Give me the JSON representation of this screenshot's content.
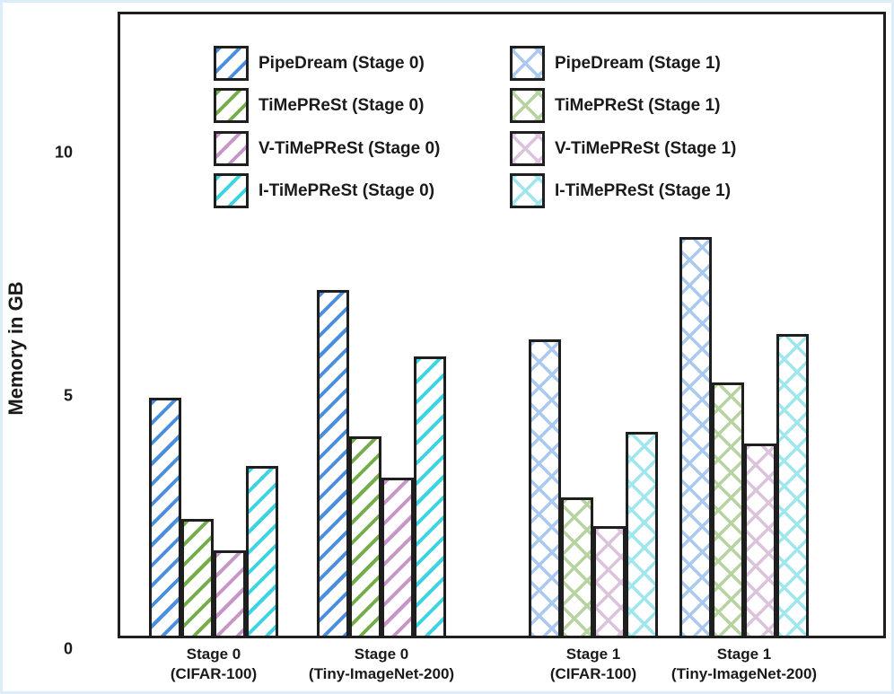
{
  "page": {
    "background": "#ffffff",
    "page_edge_color": "#daedf9",
    "frame_color": "#1f1f1f",
    "text_color": "#1a1a1a"
  },
  "chart_data": {
    "type": "bar",
    "ylabel": "Memory in GB",
    "yticks": [
      0,
      5,
      10
    ],
    "ylim": [
      0,
      12.9
    ],
    "grid": false,
    "legend_position": "top-inside-two-columns",
    "categories": [
      "Stage 0 (CIFAR-100)",
      "Stage 0 (Tiny-ImageNet-200)",
      "Stage 1 (CIFAR-100)",
      "Stage 1 (Tiny-ImageNet-200)"
    ],
    "category_labels_two_line": [
      [
        "Stage 0",
        "(CIFAR-100)"
      ],
      [
        "Stage 0",
        "(Tiny-ImageNet-200)"
      ],
      [
        "Stage 1",
        "(CIFAR-100)"
      ],
      [
        "Stage 1",
        "(Tiny-ImageNet-200)"
      ]
    ],
    "series": [
      {
        "name": "PipeDream (Stage 0)",
        "hatch": "diagonal",
        "color": "#4a8ee0",
        "values": [
          4.95,
          7.15,
          null,
          null
        ]
      },
      {
        "name": "TiMePReSt (Stage 0)",
        "hatch": "diagonal",
        "color": "#73ae4b",
        "values": [
          2.45,
          4.15,
          null,
          null
        ]
      },
      {
        "name": "V-TiMePReSt (Stage 0)",
        "hatch": "diagonal",
        "color": "#c994c6",
        "values": [
          1.8,
          3.3,
          null,
          null
        ]
      },
      {
        "name": "I-TiMePReSt (Stage 0)",
        "hatch": "diagonal",
        "color": "#3bd4e4",
        "values": [
          3.55,
          5.8,
          null,
          null
        ]
      },
      {
        "name": "PipeDream (Stage 1)",
        "hatch": "crosshatch",
        "color": "#a9c9f0",
        "values": [
          null,
          null,
          6.15,
          8.25
        ]
      },
      {
        "name": "TiMePReSt (Stage 1)",
        "hatch": "crosshatch",
        "color": "#b7d3a0",
        "values": [
          null,
          null,
          2.9,
          5.25
        ]
      },
      {
        "name": "V-TiMePReSt (Stage 1)",
        "hatch": "crosshatch",
        "color": "#dcc3dc",
        "values": [
          null,
          null,
          2.3,
          4.0
        ]
      },
      {
        "name": "I-TiMePReSt (Stage 1)",
        "hatch": "crosshatch",
        "color": "#9fe7ed",
        "values": [
          null,
          null,
          4.25,
          6.25
        ]
      }
    ],
    "legend_columns": [
      [
        0,
        1,
        2,
        3
      ],
      [
        4,
        5,
        6,
        7
      ]
    ]
  }
}
